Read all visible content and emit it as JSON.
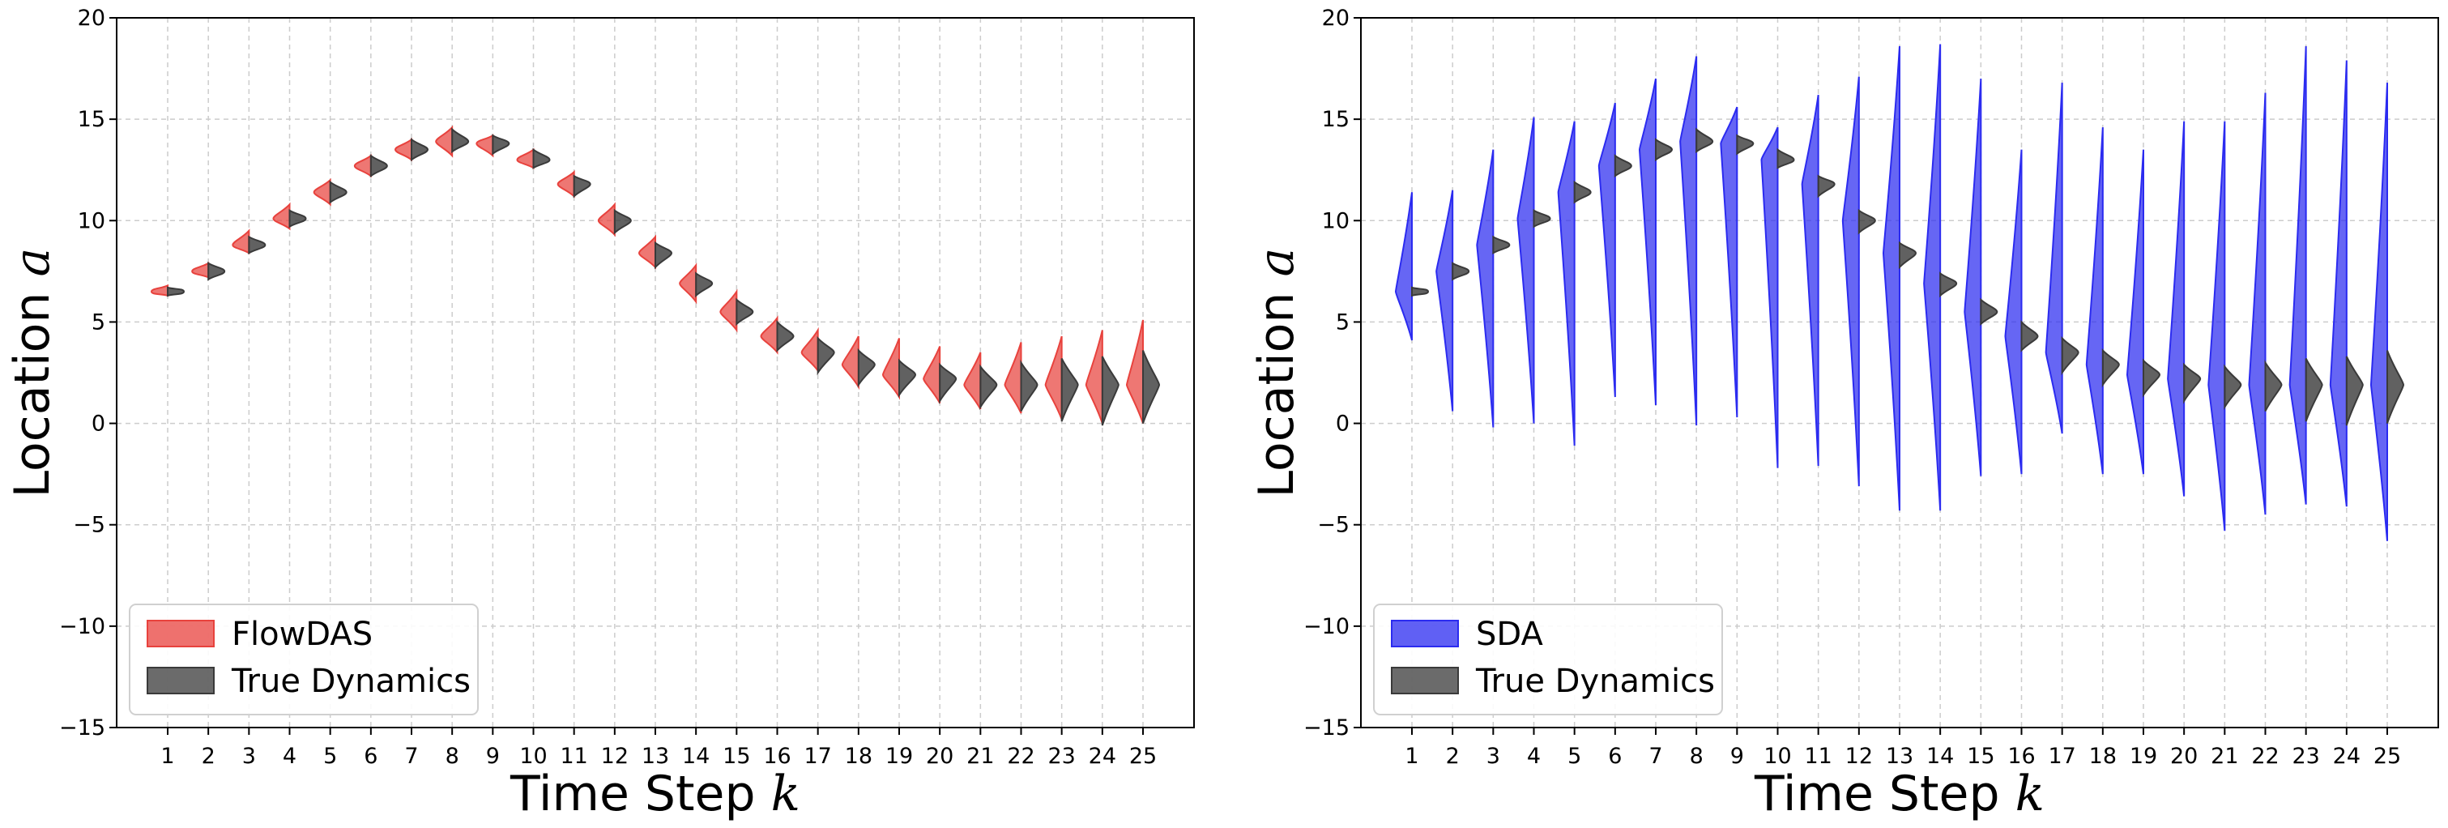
{
  "colors": {
    "flowdas": "#e8423d",
    "sda": "#2b2bf0",
    "truth": "#3a3a3a",
    "grid": "#cccccc"
  },
  "chart_data": [
    {
      "type": "violin",
      "xlabel": "Time Step",
      "xlabel_var": "k",
      "ylabel": "Location",
      "ylabel_var": "a",
      "ylim": [
        -15,
        20
      ],
      "yticks": [
        "−15",
        "−10",
        "−5",
        "0",
        "5",
        "10",
        "15",
        "20"
      ],
      "categories": [
        "1",
        "2",
        "3",
        "4",
        "5",
        "6",
        "7",
        "8",
        "9",
        "10",
        "11",
        "12",
        "13",
        "14",
        "15",
        "16",
        "17",
        "18",
        "19",
        "20",
        "21",
        "22",
        "23",
        "24",
        "25"
      ],
      "grid": true,
      "legend_position": "bottom-left",
      "series": [
        {
          "name": "FlowDAS",
          "color_key": "flowdas",
          "side": "left",
          "min": [
            6.3,
            7.2,
            8.4,
            9.6,
            10.8,
            12.2,
            13.0,
            13.2,
            13.2,
            12.6,
            11.2,
            9.3,
            7.7,
            6.0,
            4.6,
            3.5,
            2.6,
            1.8,
            1.3,
            1.0,
            0.7,
            0.5,
            0.2,
            0.0,
            0.0
          ],
          "max": [
            6.8,
            7.9,
            9.5,
            10.8,
            12.0,
            13.2,
            14.0,
            14.6,
            14.2,
            13.5,
            12.4,
            10.8,
            9.2,
            7.8,
            6.5,
            5.2,
            4.6,
            4.3,
            4.2,
            3.8,
            3.5,
            4.0,
            4.3,
            4.6,
            5.1
          ],
          "median": [
            6.5,
            7.5,
            8.8,
            10.1,
            11.4,
            12.7,
            13.5,
            13.9,
            13.8,
            13.0,
            11.8,
            10.0,
            8.4,
            6.9,
            5.5,
            4.3,
            3.5,
            2.9,
            2.4,
            2.2,
            1.9,
            1.9,
            1.9,
            1.9,
            1.9
          ]
        },
        {
          "name": "SDA",
          "color_key": "sda",
          "side": "left",
          "min": [
            4.1,
            0.6,
            -0.2,
            0.0,
            -1.1,
            1.3,
            0.9,
            -0.1,
            0.3,
            -2.2,
            -2.1,
            -3.1,
            -4.3,
            -4.3,
            -2.6,
            -2.5,
            -0.5,
            -2.5,
            -2.5,
            -3.6,
            -5.3,
            -4.5,
            -4.0,
            -4.1,
            -5.8
          ],
          "max": [
            11.4,
            11.5,
            13.5,
            15.1,
            14.9,
            15.8,
            17.0,
            18.1,
            15.6,
            14.6,
            16.2,
            17.1,
            18.6,
            18.7,
            17.0,
            13.5,
            16.8,
            14.6,
            13.5,
            14.9,
            14.9,
            16.3,
            18.6,
            17.9,
            16.8
          ],
          "median": [
            6.5,
            7.5,
            8.8,
            10.1,
            11.4,
            12.7,
            13.5,
            13.9,
            13.8,
            13.0,
            11.8,
            10.0,
            8.4,
            6.9,
            5.5,
            4.3,
            3.5,
            2.9,
            2.4,
            2.2,
            1.9,
            1.9,
            1.9,
            1.9,
            1.9
          ]
        },
        {
          "name": "True Dynamics",
          "color_key": "truth",
          "side": "right",
          "min": [
            6.3,
            7.1,
            8.4,
            9.7,
            10.9,
            12.2,
            13.0,
            13.4,
            13.3,
            12.6,
            11.2,
            9.4,
            7.7,
            6.3,
            4.9,
            3.6,
            2.5,
            1.9,
            1.4,
            1.1,
            0.8,
            0.6,
            0.1,
            -0.1,
            0.0
          ],
          "max": [
            6.7,
            7.9,
            9.2,
            10.5,
            11.9,
            13.2,
            14.0,
            14.5,
            14.2,
            13.5,
            12.2,
            10.5,
            8.9,
            7.4,
            6.1,
            5.0,
            4.2,
            3.6,
            3.1,
            2.9,
            2.8,
            3.0,
            3.2,
            3.3,
            3.6
          ],
          "median": [
            6.5,
            7.5,
            8.8,
            10.1,
            11.4,
            12.7,
            13.5,
            13.9,
            13.8,
            13.0,
            11.8,
            10.0,
            8.4,
            6.9,
            5.5,
            4.3,
            3.5,
            2.9,
            2.4,
            2.2,
            1.9,
            1.9,
            1.9,
            1.9,
            1.9
          ]
        }
      ],
      "panels": [
        {
          "model_series": "FlowDAS",
          "legend": [
            "FlowDAS",
            "True Dynamics"
          ]
        },
        {
          "model_series": "SDA",
          "legend": [
            "SDA",
            "True Dynamics"
          ]
        }
      ]
    }
  ]
}
